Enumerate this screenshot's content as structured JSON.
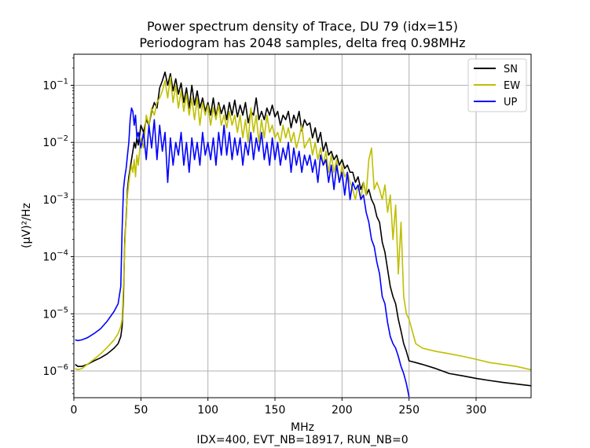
{
  "chart_data": {
    "type": "line",
    "title_lines": [
      "Power spectrum density of Trace, DU 79 (idx=15)",
      "Periodogram has 2048 samples, delta freq 0.98MHz"
    ],
    "xlabel": "MHz",
    "ylabel": "(µV)²/Hz",
    "footer": "IDX=400, EVT_NB=18917, RUN_NB=0",
    "xlim": [
      0,
      341
    ],
    "ylim": [
      3.4e-07,
      0.35
    ],
    "yscale": "log",
    "grid": true,
    "legend_position": "top-right",
    "x_ticks": [
      0,
      50,
      100,
      150,
      200,
      250,
      300
    ],
    "x_tick_labels": [
      "0",
      "50",
      "100",
      "150",
      "200",
      "250",
      "300"
    ],
    "y_ticks": [
      1e-06,
      1e-05,
      0.0001,
      0.001,
      0.01,
      0.1
    ],
    "y_tick_labels": [
      {
        "base": "10",
        "exp": "−6"
      },
      {
        "base": "10",
        "exp": "−5"
      },
      {
        "base": "10",
        "exp": "−4"
      },
      {
        "base": "10",
        "exp": "−3"
      },
      {
        "base": "10",
        "exp": "−2"
      },
      {
        "base": "10",
        "exp": "−1"
      }
    ],
    "series": [
      {
        "name": "SN",
        "color": "#000000",
        "x": [
          1,
          3,
          6,
          10,
          15,
          20,
          25,
          30,
          33,
          35,
          36,
          37,
          38,
          39,
          40,
          41,
          42,
          43,
          44,
          45,
          46,
          47,
          48,
          50,
          52,
          54,
          56,
          58,
          60,
          62,
          64,
          66,
          68,
          70,
          72,
          74,
          76,
          78,
          80,
          82,
          84,
          86,
          88,
          90,
          92,
          94,
          96,
          98,
          100,
          102,
          104,
          106,
          108,
          110,
          112,
          114,
          116,
          118,
          120,
          122,
          124,
          126,
          128,
          130,
          132,
          134,
          136,
          138,
          140,
          142,
          144,
          146,
          148,
          150,
          152,
          154,
          156,
          158,
          160,
          162,
          164,
          166,
          168,
          170,
          172,
          174,
          176,
          178,
          180,
          182,
          184,
          186,
          188,
          190,
          192,
          194,
          196,
          198,
          200,
          202,
          204,
          206,
          208,
          210,
          212,
          214,
          216,
          218,
          220,
          222,
          224,
          226,
          228,
          230,
          232,
          234,
          236,
          238,
          240,
          242,
          244,
          246,
          248,
          250,
          255,
          260,
          270,
          280,
          290,
          300,
          310,
          320,
          330,
          341
        ],
        "values": [
          1.3e-06,
          1.2e-06,
          1.2e-06,
          1.3e-06,
          1.5e-06,
          1.7e-06,
          2e-06,
          2.5e-06,
          3e-06,
          4e-06,
          6e-06,
          2e-05,
          0.0002,
          0.0005,
          0.0015,
          0.0025,
          0.0035,
          0.005,
          0.007,
          0.01,
          0.008,
          0.012,
          0.009,
          0.02,
          0.015,
          0.025,
          0.02,
          0.035,
          0.05,
          0.04,
          0.09,
          0.12,
          0.17,
          0.1,
          0.16,
          0.08,
          0.13,
          0.07,
          0.11,
          0.05,
          0.09,
          0.04,
          0.1,
          0.045,
          0.08,
          0.04,
          0.06,
          0.035,
          0.05,
          0.03,
          0.06,
          0.028,
          0.05,
          0.032,
          0.045,
          0.025,
          0.05,
          0.03,
          0.055,
          0.028,
          0.045,
          0.03,
          0.05,
          0.022,
          0.035,
          0.03,
          0.06,
          0.025,
          0.035,
          0.025,
          0.04,
          0.03,
          0.045,
          0.028,
          0.035,
          0.02,
          0.03,
          0.025,
          0.035,
          0.018,
          0.03,
          0.022,
          0.035,
          0.016,
          0.025,
          0.02,
          0.022,
          0.012,
          0.018,
          0.01,
          0.015,
          0.007,
          0.01,
          0.006,
          0.007,
          0.005,
          0.006,
          0.004,
          0.005,
          0.0035,
          0.004,
          0.003,
          0.003,
          0.002,
          0.0025,
          0.0015,
          0.002,
          0.0012,
          0.0015,
          0.001,
          0.0008,
          0.0005,
          0.0004,
          0.00018,
          0.00012,
          6e-05,
          3e-05,
          2e-05,
          1.5e-05,
          8e-06,
          5e-06,
          3e-06,
          2.2e-06,
          1.5e-06,
          1.4e-06,
          1.3e-06,
          1.1e-06,
          9e-07,
          8.2e-07,
          7.4e-07,
          6.8e-07,
          6.3e-07,
          5.9e-07,
          5.5e-07
        ]
      },
      {
        "name": "EW",
        "color": "#bfbf00",
        "x": [
          1,
          3,
          6,
          10,
          15,
          20,
          25,
          30,
          33,
          35,
          36,
          37,
          38,
          39,
          40,
          41,
          42,
          43,
          44,
          45,
          46,
          47,
          48,
          50,
          52,
          54,
          56,
          58,
          60,
          62,
          64,
          66,
          68,
          70,
          72,
          74,
          76,
          78,
          80,
          82,
          84,
          86,
          88,
          90,
          92,
          94,
          96,
          98,
          100,
          102,
          104,
          106,
          108,
          110,
          112,
          114,
          116,
          118,
          120,
          122,
          124,
          126,
          128,
          130,
          132,
          134,
          136,
          138,
          140,
          142,
          144,
          146,
          148,
          150,
          152,
          154,
          156,
          158,
          160,
          162,
          164,
          166,
          168,
          170,
          172,
          174,
          176,
          178,
          180,
          182,
          184,
          186,
          188,
          190,
          192,
          194,
          196,
          198,
          200,
          202,
          204,
          206,
          208,
          210,
          212,
          214,
          216,
          218,
          220,
          222,
          224,
          226,
          228,
          230,
          232,
          234,
          236,
          238,
          240,
          242,
          244,
          246,
          248,
          250,
          255,
          260,
          270,
          280,
          290,
          300,
          310,
          320,
          330,
          341
        ],
        "values": [
          1.1e-06,
          1.05e-06,
          1.1e-06,
          1.3e-06,
          1.6e-06,
          2e-06,
          2.6e-06,
          3.5e-06,
          4.5e-06,
          6e-06,
          8e-06,
          3e-05,
          0.00015,
          0.0006,
          0.0012,
          0.002,
          0.003,
          0.004,
          0.003,
          0.005,
          0.0025,
          0.006,
          0.004,
          0.012,
          0.008,
          0.03,
          0.02,
          0.04,
          0.03,
          0.05,
          0.06,
          0.08,
          0.12,
          0.06,
          0.14,
          0.05,
          0.1,
          0.04,
          0.08,
          0.035,
          0.07,
          0.03,
          0.06,
          0.025,
          0.06,
          0.02,
          0.05,
          0.03,
          0.045,
          0.02,
          0.04,
          0.025,
          0.045,
          0.02,
          0.03,
          0.018,
          0.035,
          0.02,
          0.03,
          0.015,
          0.03,
          0.012,
          0.025,
          0.01,
          0.04,
          0.015,
          0.03,
          0.01,
          0.025,
          0.012,
          0.03,
          0.015,
          0.02,
          0.012,
          0.015,
          0.01,
          0.02,
          0.012,
          0.018,
          0.01,
          0.015,
          0.008,
          0.012,
          0.02,
          0.008,
          0.01,
          0.012,
          0.006,
          0.01,
          0.005,
          0.008,
          0.004,
          0.007,
          0.003,
          0.006,
          0.003,
          0.005,
          0.002,
          0.004,
          0.0025,
          0.003,
          0.002,
          0.0015,
          0.001,
          0.0018,
          0.001,
          0.002,
          0.0012,
          0.005,
          0.008,
          0.0015,
          0.002,
          0.0015,
          0.001,
          0.0018,
          0.0006,
          0.0012,
          0.0002,
          0.0008,
          5e-05,
          0.0004,
          2e-05,
          1e-05,
          8e-06,
          3e-06,
          2.5e-06,
          2.2e-06,
          2e-06,
          1.8e-06,
          1.6e-06,
          1.4e-06,
          1.3e-06,
          1.2e-06,
          1.05e-06
        ]
      },
      {
        "name": "UP",
        "color": "#0000ff",
        "x": [
          1,
          3,
          6,
          10,
          15,
          20,
          25,
          30,
          33,
          35,
          36,
          37,
          38,
          39,
          40,
          41,
          42,
          43,
          44,
          45,
          46,
          47,
          48,
          50,
          52,
          54,
          56,
          58,
          60,
          62,
          64,
          66,
          68,
          70,
          72,
          74,
          76,
          78,
          80,
          82,
          84,
          86,
          88,
          90,
          92,
          94,
          96,
          98,
          100,
          102,
          104,
          106,
          108,
          110,
          112,
          114,
          116,
          118,
          120,
          122,
          124,
          126,
          128,
          130,
          132,
          134,
          136,
          138,
          140,
          142,
          144,
          146,
          148,
          150,
          152,
          154,
          156,
          158,
          160,
          162,
          164,
          166,
          168,
          170,
          172,
          174,
          176,
          178,
          180,
          182,
          184,
          186,
          188,
          190,
          192,
          194,
          196,
          198,
          200,
          202,
          204,
          206,
          208,
          210,
          212,
          214,
          216,
          218,
          220,
          222,
          224,
          226,
          228,
          230,
          232,
          234,
          236,
          238,
          240,
          242,
          244,
          246,
          248,
          250
        ],
        "values": [
          3.5e-06,
          3.4e-06,
          3.5e-06,
          3.8e-06,
          4.5e-06,
          5.5e-06,
          7.5e-06,
          1.1e-05,
          1.5e-05,
          3e-05,
          0.0003,
          0.0015,
          0.0025,
          0.0035,
          0.006,
          0.01,
          0.025,
          0.04,
          0.035,
          0.02,
          0.03,
          0.012,
          0.015,
          0.008,
          0.015,
          0.005,
          0.02,
          0.008,
          0.025,
          0.005,
          0.02,
          0.007,
          0.015,
          0.002,
          0.012,
          0.004,
          0.01,
          0.006,
          0.015,
          0.004,
          0.01,
          0.003,
          0.012,
          0.005,
          0.01,
          0.004,
          0.015,
          0.006,
          0.01,
          0.005,
          0.012,
          0.004,
          0.015,
          0.006,
          0.02,
          0.006,
          0.015,
          0.005,
          0.012,
          0.006,
          0.012,
          0.004,
          0.01,
          0.006,
          0.015,
          0.005,
          0.012,
          0.007,
          0.015,
          0.005,
          0.01,
          0.004,
          0.012,
          0.005,
          0.01,
          0.004,
          0.008,
          0.005,
          0.01,
          0.003,
          0.008,
          0.004,
          0.007,
          0.003,
          0.006,
          0.004,
          0.006,
          0.003,
          0.005,
          0.002,
          0.006,
          0.004,
          0.005,
          0.002,
          0.004,
          0.0015,
          0.004,
          0.002,
          0.003,
          0.0012,
          0.003,
          0.001,
          0.002,
          0.0015,
          0.0018,
          0.001,
          0.0012,
          0.0006,
          0.0004,
          0.0002,
          0.00015,
          8e-05,
          5e-05,
          2e-05,
          1.5e-05,
          7e-06,
          4e-06,
          3e-06,
          2.5e-06,
          1.8e-06,
          1.2e-06,
          9e-07,
          6e-07,
          3.5e-07
        ]
      }
    ]
  }
}
